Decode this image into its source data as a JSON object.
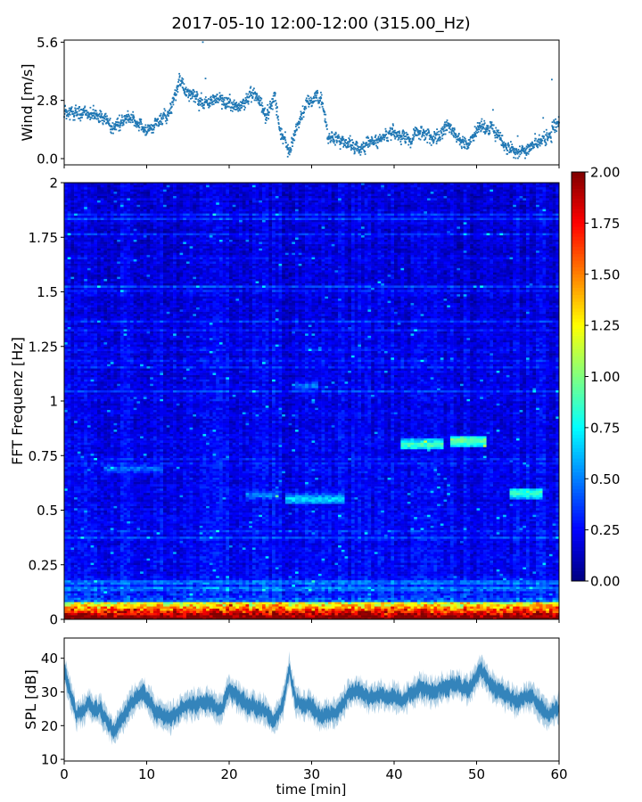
{
  "colors": {
    "series": "#1f77b4"
  },
  "title": "2017-05-10 12:00-12:00 (315.00_Hz)",
  "chart_data": [
    {
      "id": "wind",
      "type": "scatter",
      "ylabel": "Wind [m/s]",
      "xlim": [
        0,
        60
      ],
      "ylim": [
        -0.3,
        5.7
      ],
      "yticks": [
        0.0,
        2.8,
        5.6
      ],
      "ytick_labels": [
        "0.0",
        "2.8",
        "5.6"
      ],
      "anchors_x": [
        0,
        2,
        4,
        6,
        8,
        10,
        12,
        13,
        14,
        15,
        17,
        19,
        21,
        23,
        24.5,
        25.5,
        26.3,
        27.3,
        28.5,
        29.3,
        30.3,
        31.3,
        32,
        34,
        36,
        38,
        40,
        42,
        43,
        45,
        46.5,
        48,
        49,
        50.5,
        52,
        53.5,
        55,
        57,
        58.5,
        59.5,
        60
      ],
      "anchors_y": [
        2.3,
        2.2,
        2.1,
        1.5,
        2.0,
        1.3,
        1.9,
        2.4,
        3.8,
        3.1,
        2.7,
        2.9,
        2.4,
        3.2,
        2.1,
        3.0,
        1.2,
        0.4,
        1.8,
        2.6,
        3.0,
        2.8,
        1.0,
        0.8,
        0.5,
        0.9,
        1.2,
        0.9,
        1.3,
        1.0,
        1.6,
        1.0,
        0.6,
        1.6,
        1.4,
        0.6,
        0.3,
        0.7,
        1.0,
        1.4,
        1.6
      ],
      "n_points": 2000
    },
    {
      "id": "spectrogram",
      "type": "heatmap",
      "ylabel": "FFT Frequenz [Hz]",
      "xlim": [
        0,
        60
      ],
      "ylim": [
        0,
        2
      ],
      "yticks": [
        0,
        0.25,
        0.5,
        0.75,
        1,
        1.25,
        1.5,
        1.75,
        2
      ],
      "ytick_labels": [
        "0",
        "0.25",
        "0.5",
        "0.75",
        "1",
        "1.25",
        "1.5",
        "1.75",
        "2"
      ],
      "colormap": "jet",
      "colorbar": {
        "vmin": 0,
        "vmax": 2,
        "ticks": [
          0.0,
          0.25,
          0.5,
          0.75,
          1.0,
          1.25,
          1.5,
          1.75,
          2.0
        ],
        "tick_labels": [
          "0.00",
          "0.25",
          "0.50",
          "0.75",
          "1.00",
          "1.25",
          "1.50",
          "1.75",
          "2.00"
        ]
      },
      "base_level": 0.2,
      "low_freq_band_hz": 0.08,
      "features": [
        {
          "t0": 41,
          "t1": 46,
          "f": 0.8,
          "level": 0.9
        },
        {
          "t0": 47,
          "t1": 51,
          "f": 0.82,
          "level": 1.0
        },
        {
          "t0": 54,
          "t1": 58,
          "f": 0.58,
          "level": 0.9
        },
        {
          "t0": 27,
          "t1": 34,
          "f": 0.55,
          "level": 0.7
        },
        {
          "t0": 5,
          "t1": 12,
          "f": 0.69,
          "level": 0.5
        },
        {
          "t0": 28,
          "t1": 31,
          "f": 1.07,
          "level": 0.5
        },
        {
          "t0": 22,
          "t1": 26,
          "f": 0.57,
          "level": 0.55
        }
      ],
      "n_time_bins": 150,
      "n_freq_bins": 200
    },
    {
      "id": "spl",
      "type": "area",
      "ylabel": "SPL [dB]",
      "xlabel": "time [min]",
      "xlim": [
        0,
        60
      ],
      "ylim": [
        9.5,
        46
      ],
      "yticks": [
        10,
        20,
        30,
        40
      ],
      "ytick_labels": [
        "10",
        "20",
        "30",
        "40"
      ],
      "xticks": [
        0,
        10,
        20,
        30,
        40,
        50,
        60
      ],
      "xtick_labels": [
        "0",
        "10",
        "20",
        "30",
        "40",
        "50",
        "60"
      ],
      "anchors_x": [
        0,
        0.6,
        1.5,
        3,
        4.5,
        6,
        7,
        8,
        9.5,
        11,
        13,
        15,
        17,
        19,
        20,
        22,
        24,
        25.5,
        26.5,
        27.3,
        28,
        29,
        30,
        31,
        33,
        34.5,
        35.5,
        37,
        39,
        41,
        43,
        45,
        47,
        49,
        50.5,
        52,
        53.5,
        55,
        56.5,
        58,
        59,
        60
      ],
      "anchors_y": [
        36,
        31,
        23,
        26,
        24,
        18,
        22,
        26,
        30,
        24,
        22,
        26,
        27,
        25,
        31,
        26,
        25,
        21,
        26,
        37,
        28,
        26,
        25,
        23,
        24,
        29,
        31,
        28,
        29,
        28,
        31,
        30,
        32,
        31,
        37,
        31,
        29,
        27,
        29,
        25,
        23,
        26
      ],
      "n_samples": 900
    }
  ]
}
